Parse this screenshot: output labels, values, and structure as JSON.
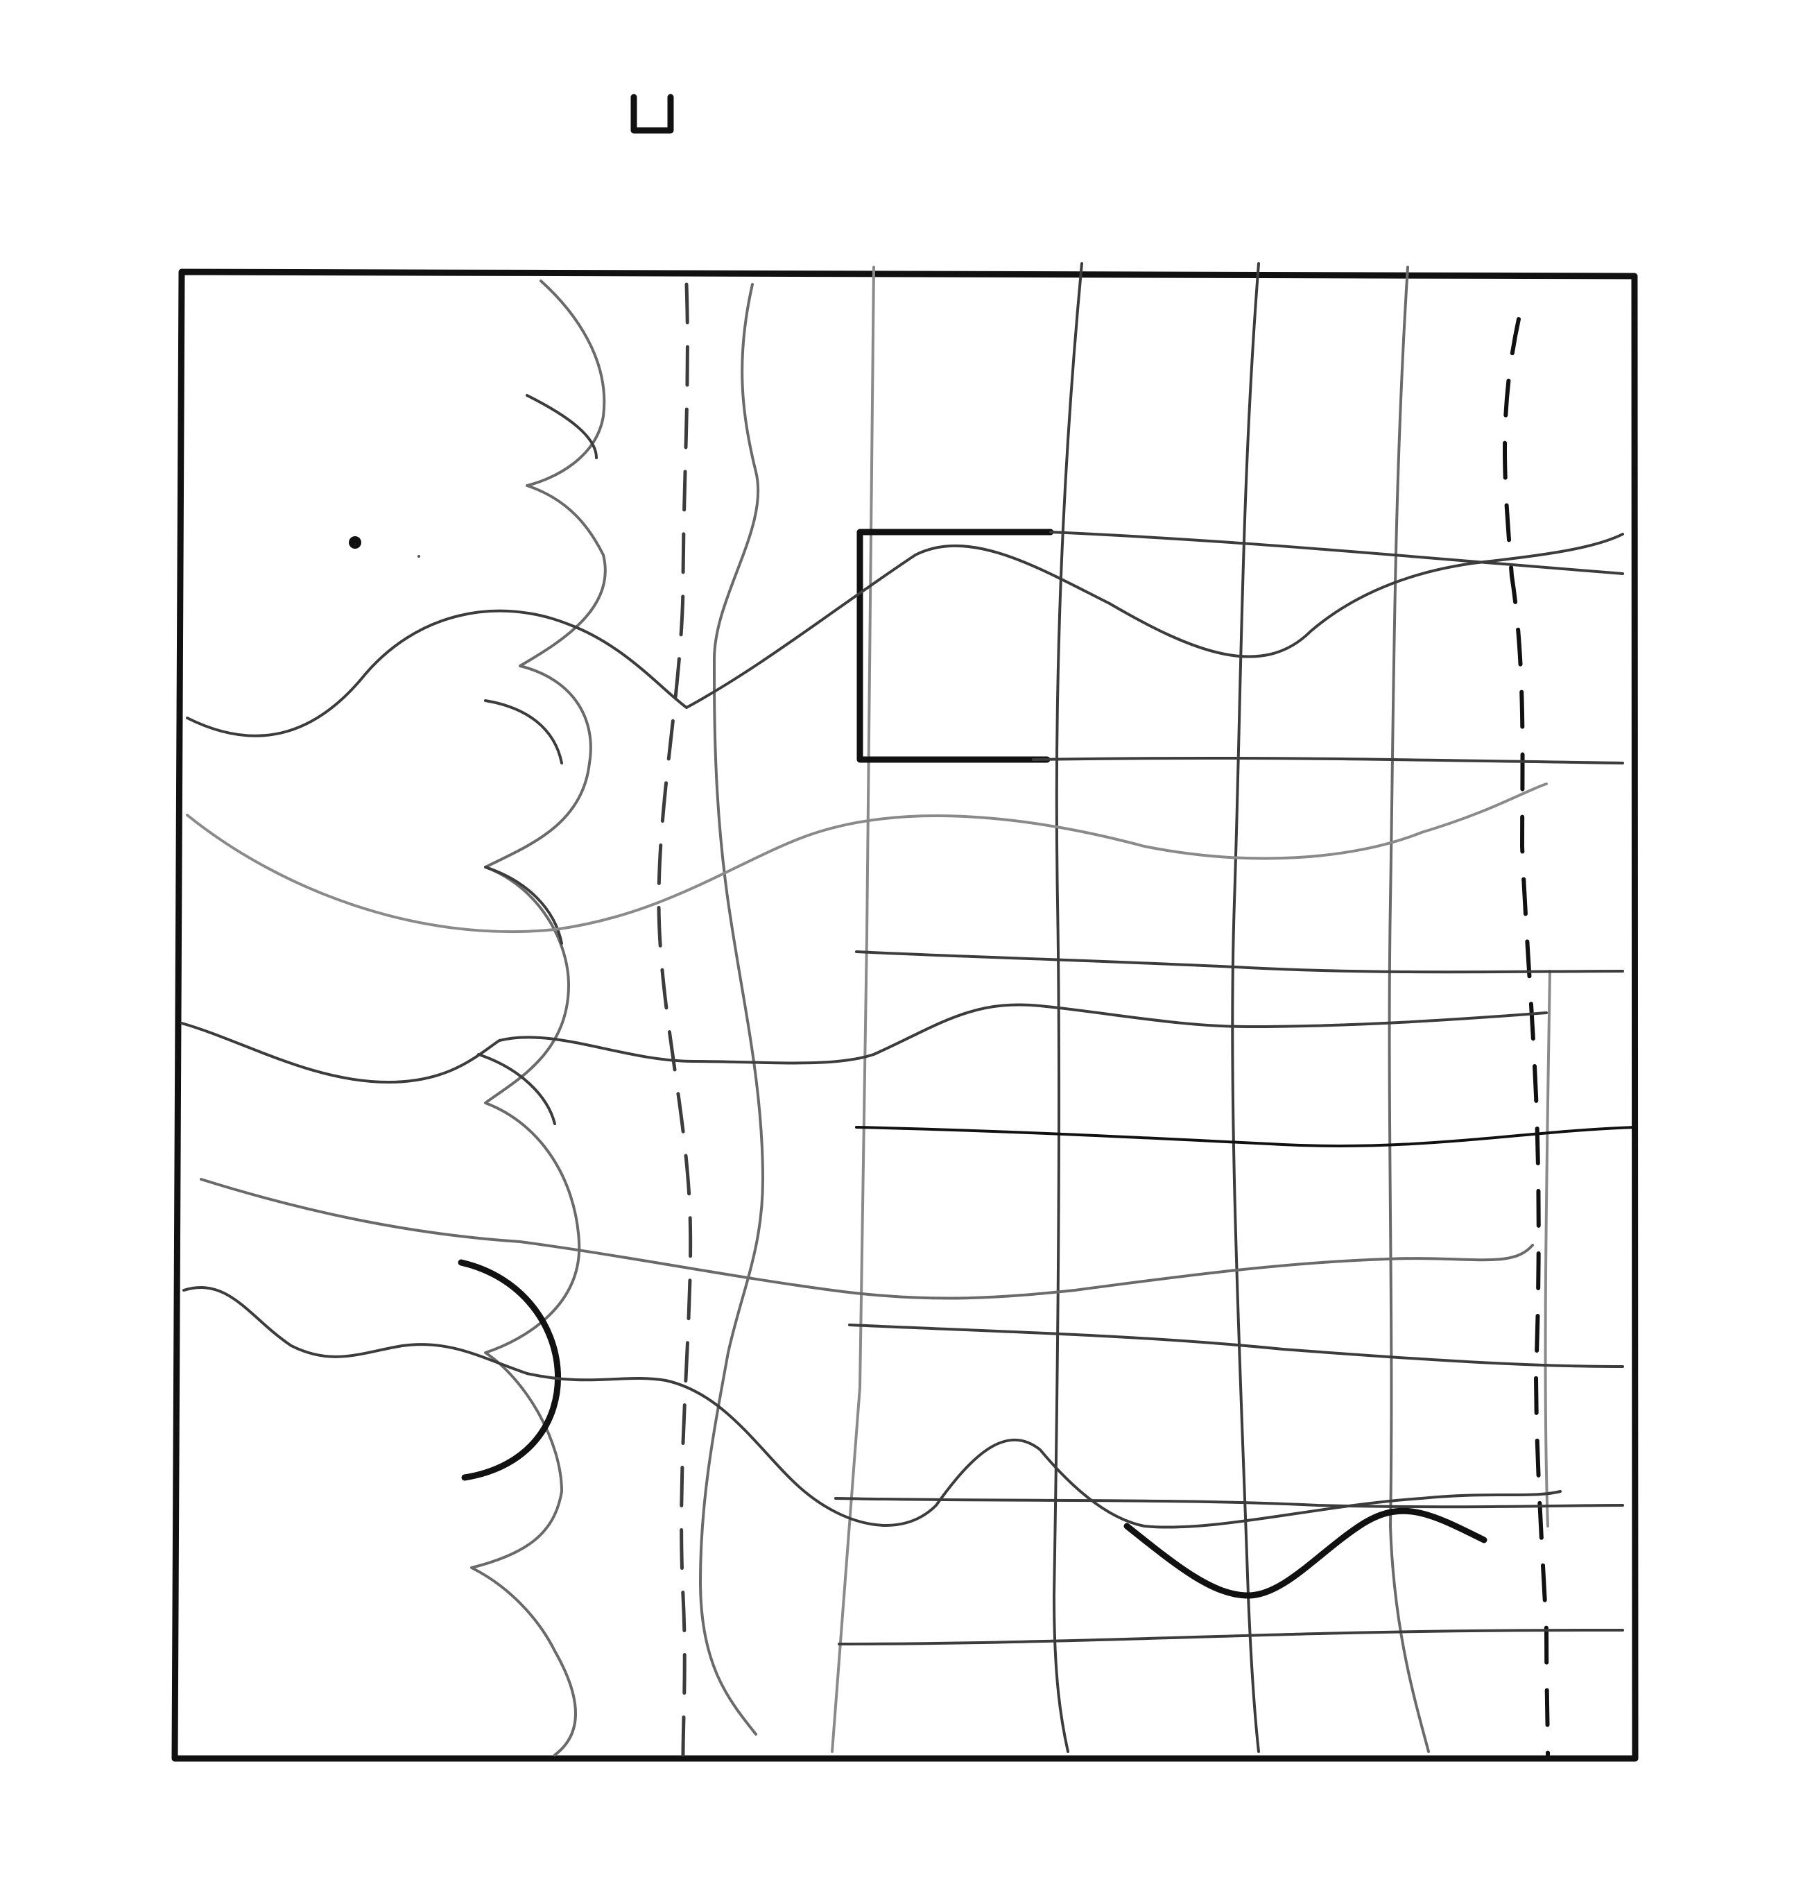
{
  "drawing": {
    "ink_color": "#111111",
    "paper_color": "#ffffff"
  }
}
